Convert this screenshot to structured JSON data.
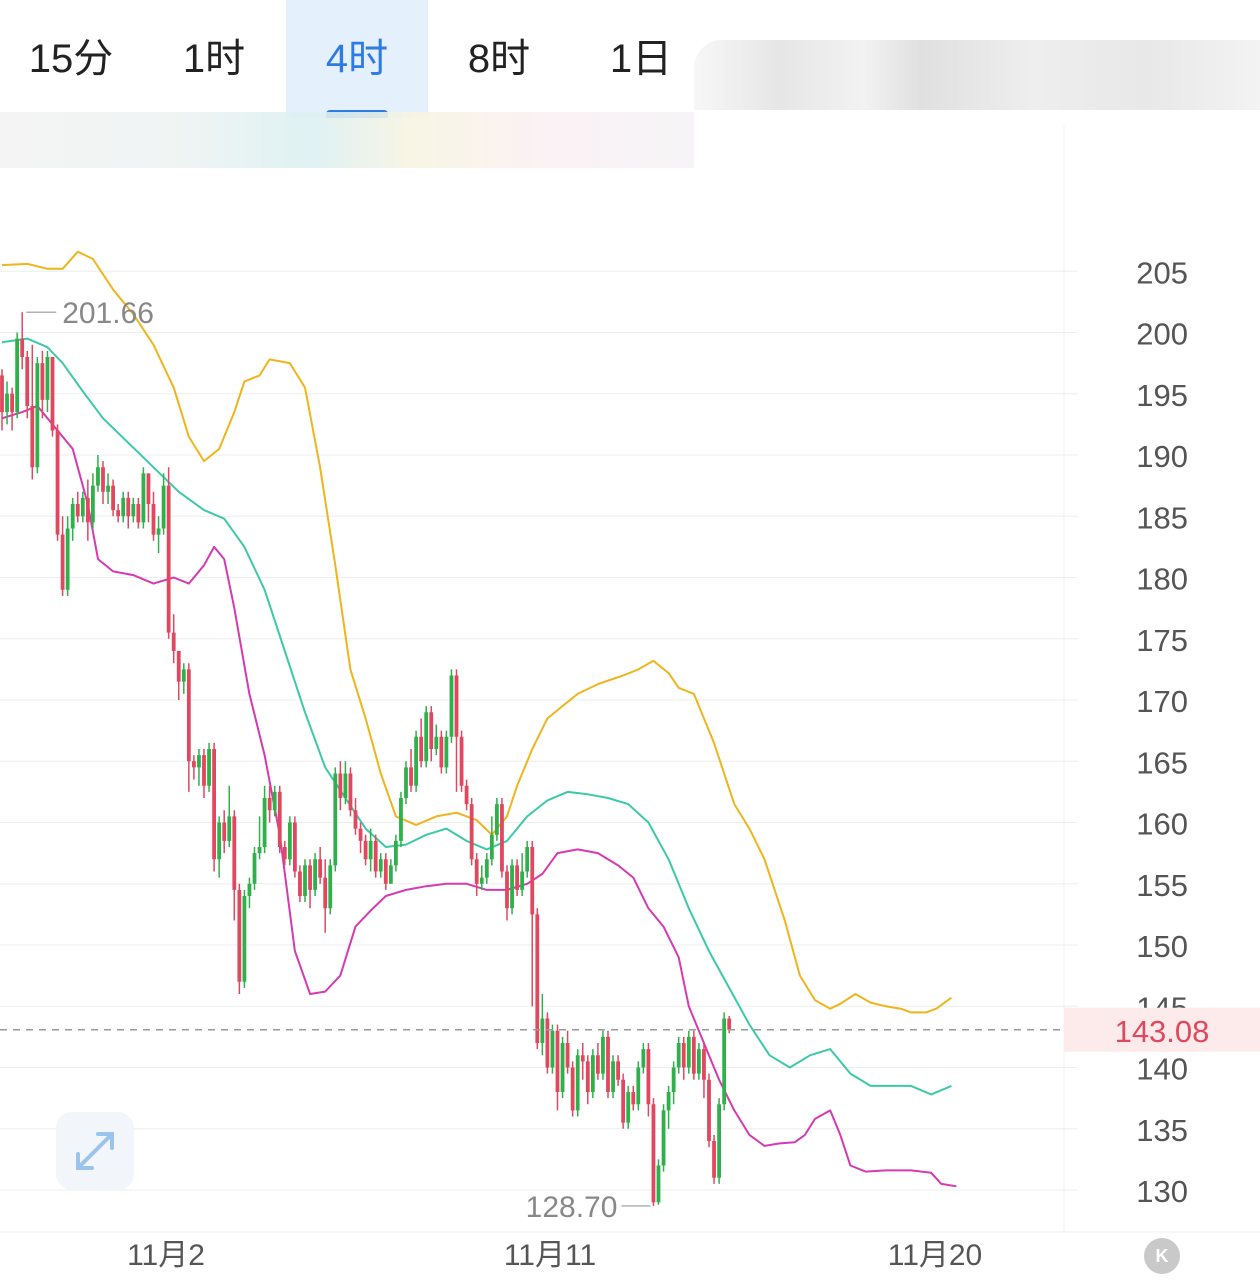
{
  "tabs": [
    {
      "label": "15分",
      "active": false
    },
    {
      "label": "1时",
      "active": false
    },
    {
      "label": "4时",
      "active": true
    },
    {
      "label": "8时",
      "active": false
    },
    {
      "label": "1日",
      "active": false
    }
  ],
  "badge_label": "K",
  "colors": {
    "up": "#2fb04a",
    "down": "#e0485f",
    "upper_band": "#f0b41c",
    "middle_band": "#3cc9a8",
    "lower_band": "#d63ab1",
    "accent": "#2f7be5",
    "price_tag_bg": "#fdeaea",
    "price_tag_text": "#e0485f"
  },
  "chart_data": {
    "type": "candlestick",
    "y_ticks": [
      130,
      135,
      140,
      145,
      150,
      155,
      160,
      165,
      170,
      175,
      180,
      185,
      190,
      195,
      200,
      205
    ],
    "y_tick_labels": [
      "130",
      "135",
      "140",
      "145",
      "150",
      "155",
      "160",
      "165",
      "170",
      "175",
      "180",
      "185",
      "190",
      "195",
      "200",
      "205"
    ],
    "x_labels": [
      "11月2",
      "11月11",
      "11月20"
    ],
    "current_price": 143.08,
    "current_price_label": "143.08",
    "high_marker": {
      "value": 201.66,
      "label": "201.66"
    },
    "low_marker": {
      "value": 128.7,
      "label": "128.70"
    },
    "candles": [
      [
        196.5,
        193.5,
        197,
        192
      ],
      [
        193.5,
        195,
        196,
        192.5
      ],
      [
        195,
        193.5,
        195.5,
        192
      ],
      [
        193.5,
        199.5,
        200,
        193
      ],
      [
        199.5,
        198,
        201.66,
        197
      ],
      [
        198,
        194,
        198.5,
        193
      ],
      [
        194,
        189,
        199,
        188
      ],
      [
        189,
        197.5,
        198,
        188.5
      ],
      [
        197.5,
        194.5,
        198.5,
        193
      ],
      [
        194.5,
        198,
        198.5,
        193.5
      ],
      [
        198,
        192,
        198,
        191.5
      ],
      [
        192,
        183.5,
        192.5,
        183
      ],
      [
        183.5,
        179,
        185,
        178.5
      ],
      [
        179,
        184,
        185,
        178.5
      ],
      [
        184,
        186,
        186.5,
        183
      ],
      [
        186,
        185,
        187,
        184.5
      ],
      [
        185,
        186.5,
        187,
        184.5
      ],
      [
        186.5,
        184.5,
        188,
        183
      ],
      [
        184.5,
        187.5,
        188.5,
        184
      ],
      [
        187.5,
        189,
        190,
        187
      ],
      [
        189,
        187,
        189.5,
        186
      ],
      [
        187,
        187.5,
        188.5,
        186
      ],
      [
        187.5,
        185.5,
        188,
        185
      ],
      [
        185.5,
        185,
        186,
        184.5
      ],
      [
        185,
        186.5,
        187,
        184.5
      ],
      [
        186.5,
        185,
        187,
        184
      ],
      [
        185,
        186,
        186.5,
        184.5
      ],
      [
        186,
        184.5,
        186.5,
        184
      ],
      [
        184.5,
        188.5,
        189,
        184
      ],
      [
        188.5,
        186,
        188.5,
        184.5
      ],
      [
        186,
        183.5,
        187,
        183
      ],
      [
        183.5,
        184,
        185,
        182
      ],
      [
        184,
        187.5,
        188.5,
        183.5
      ],
      [
        187.5,
        175.5,
        189,
        175
      ],
      [
        175.5,
        174,
        177,
        173
      ],
      [
        174,
        171.5,
        174,
        170
      ],
      [
        171.5,
        172.5,
        173,
        170.5
      ],
      [
        172.5,
        165,
        173,
        162.5
      ],
      [
        165,
        164.5,
        165.5,
        163.5
      ],
      [
        164.5,
        165.5,
        166,
        163
      ],
      [
        165.5,
        163,
        166,
        162
      ],
      [
        163,
        166,
        166.5,
        162.5
      ],
      [
        166,
        157,
        166.5,
        156
      ],
      [
        157,
        160,
        160.5,
        155.5
      ],
      [
        160,
        158.5,
        161,
        157.5
      ],
      [
        158.5,
        160.5,
        163,
        158
      ],
      [
        160.5,
        154.5,
        161,
        152
      ],
      [
        154.5,
        147,
        155,
        146
      ],
      [
        147,
        154,
        154.5,
        146.5
      ],
      [
        154,
        155,
        155.5,
        153
      ],
      [
        155,
        157.5,
        158,
        154.5
      ],
      [
        157.5,
        158,
        160.5,
        157
      ],
      [
        158,
        162,
        163,
        157.5
      ],
      [
        162,
        161,
        163,
        160
      ],
      [
        161,
        162.5,
        163,
        160.5
      ],
      [
        162.5,
        158,
        163,
        157.5
      ],
      [
        158,
        157,
        158.5,
        156.5
      ],
      [
        157,
        160,
        160.5,
        156.5
      ],
      [
        160,
        156,
        160.5,
        155.5
      ],
      [
        156,
        154,
        156.5,
        153.5
      ],
      [
        154,
        156.5,
        157,
        153.5
      ],
      [
        156.5,
        154.5,
        157,
        153
      ],
      [
        154.5,
        157,
        157.5,
        154
      ],
      [
        157,
        155.5,
        158,
        155
      ],
      [
        155.5,
        153,
        157,
        151
      ],
      [
        153,
        156.5,
        157,
        152.5
      ],
      [
        156.5,
        164,
        164.5,
        156
      ],
      [
        164,
        162,
        165,
        161
      ],
      [
        162,
        164,
        165,
        161.5
      ],
      [
        164,
        161,
        164.5,
        160.5
      ],
      [
        161,
        159.5,
        162,
        159
      ],
      [
        159.5,
        158.5,
        160,
        157.5
      ],
      [
        158.5,
        157,
        159,
        156.5
      ],
      [
        157,
        158.5,
        159.5,
        156
      ],
      [
        158.5,
        156,
        159,
        155.5
      ],
      [
        156,
        157,
        157.5,
        155.5
      ],
      [
        157,
        155,
        157.5,
        154.5
      ],
      [
        155,
        156.5,
        157,
        155
      ],
      [
        156.5,
        158.5,
        159,
        156
      ],
      [
        158.5,
        162,
        162.5,
        158
      ],
      [
        162,
        164.5,
        165,
        161.5
      ],
      [
        164.5,
        163,
        166,
        162.5
      ],
      [
        163,
        167,
        167.5,
        162.5
      ],
      [
        167,
        165,
        168.5,
        164.5
      ],
      [
        165,
        169,
        169.5,
        164.5
      ],
      [
        169,
        166,
        169.5,
        165
      ],
      [
        166,
        167,
        168,
        165.5
      ],
      [
        167,
        164.5,
        167.5,
        164
      ],
      [
        164.5,
        167,
        167.5,
        164
      ],
      [
        167,
        172,
        172.5,
        166.5
      ],
      [
        172,
        167,
        172.5,
        162.5
      ],
      [
        167,
        163,
        167.5,
        162.5
      ],
      [
        163,
        161.5,
        163.5,
        161
      ],
      [
        161.5,
        157,
        162,
        156.5
      ],
      [
        157,
        155,
        157.5,
        154
      ],
      [
        155,
        155.5,
        156.5,
        154.5
      ],
      [
        155.5,
        157,
        157.5,
        155
      ],
      [
        157,
        159,
        160.5,
        156.5
      ],
      [
        159,
        161.5,
        162,
        158.5
      ],
      [
        161.5,
        156,
        162,
        155.5
      ],
      [
        156,
        153,
        156.5,
        152
      ],
      [
        153,
        156.5,
        157,
        152.5
      ],
      [
        156.5,
        154.5,
        157,
        154
      ],
      [
        154.5,
        156,
        157.5,
        154
      ],
      [
        156,
        158,
        158.5,
        155.5
      ],
      [
        158,
        152.5,
        158.5,
        145
      ],
      [
        152.5,
        142,
        153,
        141.5
      ],
      [
        142,
        144,
        146,
        141
      ],
      [
        144,
        140,
        144.5,
        139.5
      ],
      [
        140,
        143,
        143.5,
        139.5
      ],
      [
        143,
        138,
        143.5,
        136.5
      ],
      [
        138,
        142,
        142.5,
        137.5
      ],
      [
        142,
        140,
        143,
        139.5
      ],
      [
        140,
        136.5,
        140.5,
        136
      ],
      [
        136.5,
        141,
        141.5,
        136
      ],
      [
        141,
        140.5,
        142,
        139
      ],
      [
        140.5,
        138,
        141,
        137
      ],
      [
        138,
        141,
        141.5,
        137.5
      ],
      [
        141,
        139.5,
        142,
        139
      ],
      [
        139.5,
        142.5,
        143,
        139
      ],
      [
        142.5,
        138,
        143,
        137.5
      ],
      [
        138,
        140.5,
        141,
        137.5
      ],
      [
        140.5,
        139,
        141,
        138.5
      ],
      [
        139,
        135.5,
        139.5,
        135
      ],
      [
        135.5,
        138,
        138.5,
        135
      ],
      [
        138,
        137,
        138.5,
        136.5
      ],
      [
        137,
        140,
        140.5,
        136.5
      ],
      [
        140,
        141.5,
        142,
        139.5
      ],
      [
        141.5,
        137,
        142,
        136
      ],
      [
        137,
        129,
        137.5,
        128.7
      ],
      [
        129,
        132,
        132.5,
        128.8
      ],
      [
        132,
        136.5,
        137,
        131.5
      ],
      [
        136.5,
        138,
        138.5,
        135
      ],
      [
        138,
        140,
        140.5,
        137
      ],
      [
        140,
        142,
        142.5,
        139.5
      ],
      [
        142,
        140,
        142.5,
        139
      ],
      [
        140,
        142.5,
        143,
        139.5
      ],
      [
        142.5,
        139.5,
        143,
        139
      ],
      [
        139.5,
        141.5,
        142,
        139
      ],
      [
        141.5,
        139,
        142,
        137.5
      ],
      [
        139,
        134,
        139.5,
        133.5
      ],
      [
        134,
        131,
        134.5,
        130.5
      ],
      [
        131,
        137,
        137.5,
        130.5
      ],
      [
        137,
        144,
        144.5,
        136.5
      ],
      [
        144,
        143.08,
        144.2,
        142.8
      ]
    ],
    "upper_band": [
      [
        0,
        205.5
      ],
      [
        5,
        205.6
      ],
      [
        9,
        205.2
      ],
      [
        12,
        205.2
      ],
      [
        15,
        206.6
      ],
      [
        18,
        206.0
      ],
      [
        22,
        203.5
      ],
      [
        26,
        201.5
      ],
      [
        30,
        199.0
      ],
      [
        34,
        195.5
      ],
      [
        37,
        191.5
      ],
      [
        40,
        189.5
      ],
      [
        43,
        190.5
      ],
      [
        46,
        193.5
      ],
      [
        48,
        196.0
      ],
      [
        51,
        196.5
      ],
      [
        53,
        197.8
      ],
      [
        57,
        197.5
      ],
      [
        60,
        195.5
      ],
      [
        63,
        189.0
      ],
      [
        66,
        181.0
      ],
      [
        69,
        172.5
      ],
      [
        72,
        168.5
      ],
      [
        75,
        164.0
      ],
      [
        78,
        160.5
      ],
      [
        82,
        159.8
      ],
      [
        86,
        160.5
      ],
      [
        90,
        160.8
      ],
      [
        94,
        160.2
      ],
      [
        97,
        159.0
      ],
      [
        100,
        160.5
      ],
      [
        102,
        163.0
      ],
      [
        105,
        166.0
      ],
      [
        108,
        168.5
      ],
      [
        111,
        169.5
      ],
      [
        114,
        170.5
      ],
      [
        118,
        171.3
      ],
      [
        123,
        172.0
      ],
      [
        126,
        172.5
      ],
      [
        129,
        173.2
      ],
      [
        132,
        172.2
      ],
      [
        134,
        171.0
      ],
      [
        137,
        170.5
      ],
      [
        141,
        166.5
      ],
      [
        145,
        161.5
      ],
      [
        148,
        159.5
      ],
      [
        151,
        157.0
      ],
      [
        155,
        152.0
      ],
      [
        158,
        147.5
      ],
      [
        161,
        145.5
      ],
      [
        164,
        144.8
      ],
      [
        166,
        145.2
      ],
      [
        169,
        146.0
      ],
      [
        172,
        145.3
      ],
      [
        175,
        145.0
      ],
      [
        178,
        144.8
      ],
      [
        180,
        144.5
      ],
      [
        183,
        144.5
      ],
      [
        185,
        144.8
      ],
      [
        188,
        145.7
      ]
    ],
    "middle_band": [
      [
        0,
        199.2
      ],
      [
        5,
        199.5
      ],
      [
        9,
        198.8
      ],
      [
        12,
        197.5
      ],
      [
        16,
        195.2
      ],
      [
        20,
        193.0
      ],
      [
        25,
        191.0
      ],
      [
        30,
        189.0
      ],
      [
        35,
        187.0
      ],
      [
        40,
        185.5
      ],
      [
        44,
        184.8
      ],
      [
        48,
        182.5
      ],
      [
        52,
        179.0
      ],
      [
        56,
        174.0
      ],
      [
        60,
        169.0
      ],
      [
        64,
        164.5
      ],
      [
        68,
        162.0
      ],
      [
        72,
        159.5
      ],
      [
        76,
        158.0
      ],
      [
        80,
        158.2
      ],
      [
        84,
        159.0
      ],
      [
        88,
        159.5
      ],
      [
        92,
        158.5
      ],
      [
        96,
        157.8
      ],
      [
        100,
        158.5
      ],
      [
        104,
        160.5
      ],
      [
        108,
        161.8
      ],
      [
        112,
        162.5
      ],
      [
        116,
        162.3
      ],
      [
        120,
        162.0
      ],
      [
        124,
        161.5
      ],
      [
        128,
        160.0
      ],
      [
        132,
        157.0
      ],
      [
        136,
        153.0
      ],
      [
        140,
        149.5
      ],
      [
        144,
        146.5
      ],
      [
        148,
        143.5
      ],
      [
        152,
        141.0
      ],
      [
        156,
        140.0
      ],
      [
        160,
        141.0
      ],
      [
        164,
        141.5
      ],
      [
        168,
        139.5
      ],
      [
        172,
        138.5
      ],
      [
        176,
        138.5
      ],
      [
        180,
        138.5
      ],
      [
        184,
        137.8
      ],
      [
        188,
        138.5
      ]
    ],
    "lower_band": [
      [
        0,
        193.0
      ],
      [
        4,
        193.5
      ],
      [
        7,
        194.0
      ],
      [
        10,
        192.5
      ],
      [
        14,
        190.5
      ],
      [
        17,
        186.0
      ],
      [
        19,
        181.5
      ],
      [
        22,
        180.5
      ],
      [
        26,
        180.2
      ],
      [
        30,
        179.5
      ],
      [
        34,
        180.0
      ],
      [
        37,
        179.5
      ],
      [
        40,
        181.0
      ],
      [
        42,
        182.5
      ],
      [
        44,
        181.5
      ],
      [
        46,
        177.5
      ],
      [
        49,
        170.5
      ],
      [
        52,
        165.5
      ],
      [
        55,
        159.0
      ],
      [
        58,
        149.5
      ],
      [
        61,
        146.0
      ],
      [
        64,
        146.2
      ],
      [
        67,
        147.5
      ],
      [
        70,
        151.5
      ],
      [
        73,
        152.8
      ],
      [
        76,
        154.0
      ],
      [
        80,
        154.5
      ],
      [
        84,
        154.8
      ],
      [
        88,
        155.0
      ],
      [
        92,
        155.0
      ],
      [
        96,
        154.5
      ],
      [
        100,
        154.5
      ],
      [
        104,
        155.0
      ],
      [
        107,
        155.8
      ],
      [
        110,
        157.5
      ],
      [
        114,
        157.8
      ],
      [
        118,
        157.5
      ],
      [
        122,
        156.5
      ],
      [
        125,
        155.5
      ],
      [
        128,
        153.0
      ],
      [
        131,
        151.5
      ],
      [
        134,
        149.0
      ],
      [
        136,
        145.0
      ],
      [
        139,
        142.0
      ],
      [
        142,
        139.0
      ],
      [
        145,
        136.5
      ],
      [
        148,
        134.5
      ],
      [
        151,
        133.6
      ],
      [
        154,
        133.8
      ],
      [
        157,
        133.9
      ],
      [
        159,
        134.5
      ],
      [
        161,
        135.8
      ],
      [
        164,
        136.5
      ],
      [
        166,
        134.5
      ],
      [
        168,
        132.0
      ],
      [
        171,
        131.5
      ],
      [
        175,
        131.6
      ],
      [
        180,
        131.6
      ],
      [
        184,
        131.4
      ],
      [
        186,
        130.5
      ],
      [
        189,
        130.3
      ]
    ]
  }
}
